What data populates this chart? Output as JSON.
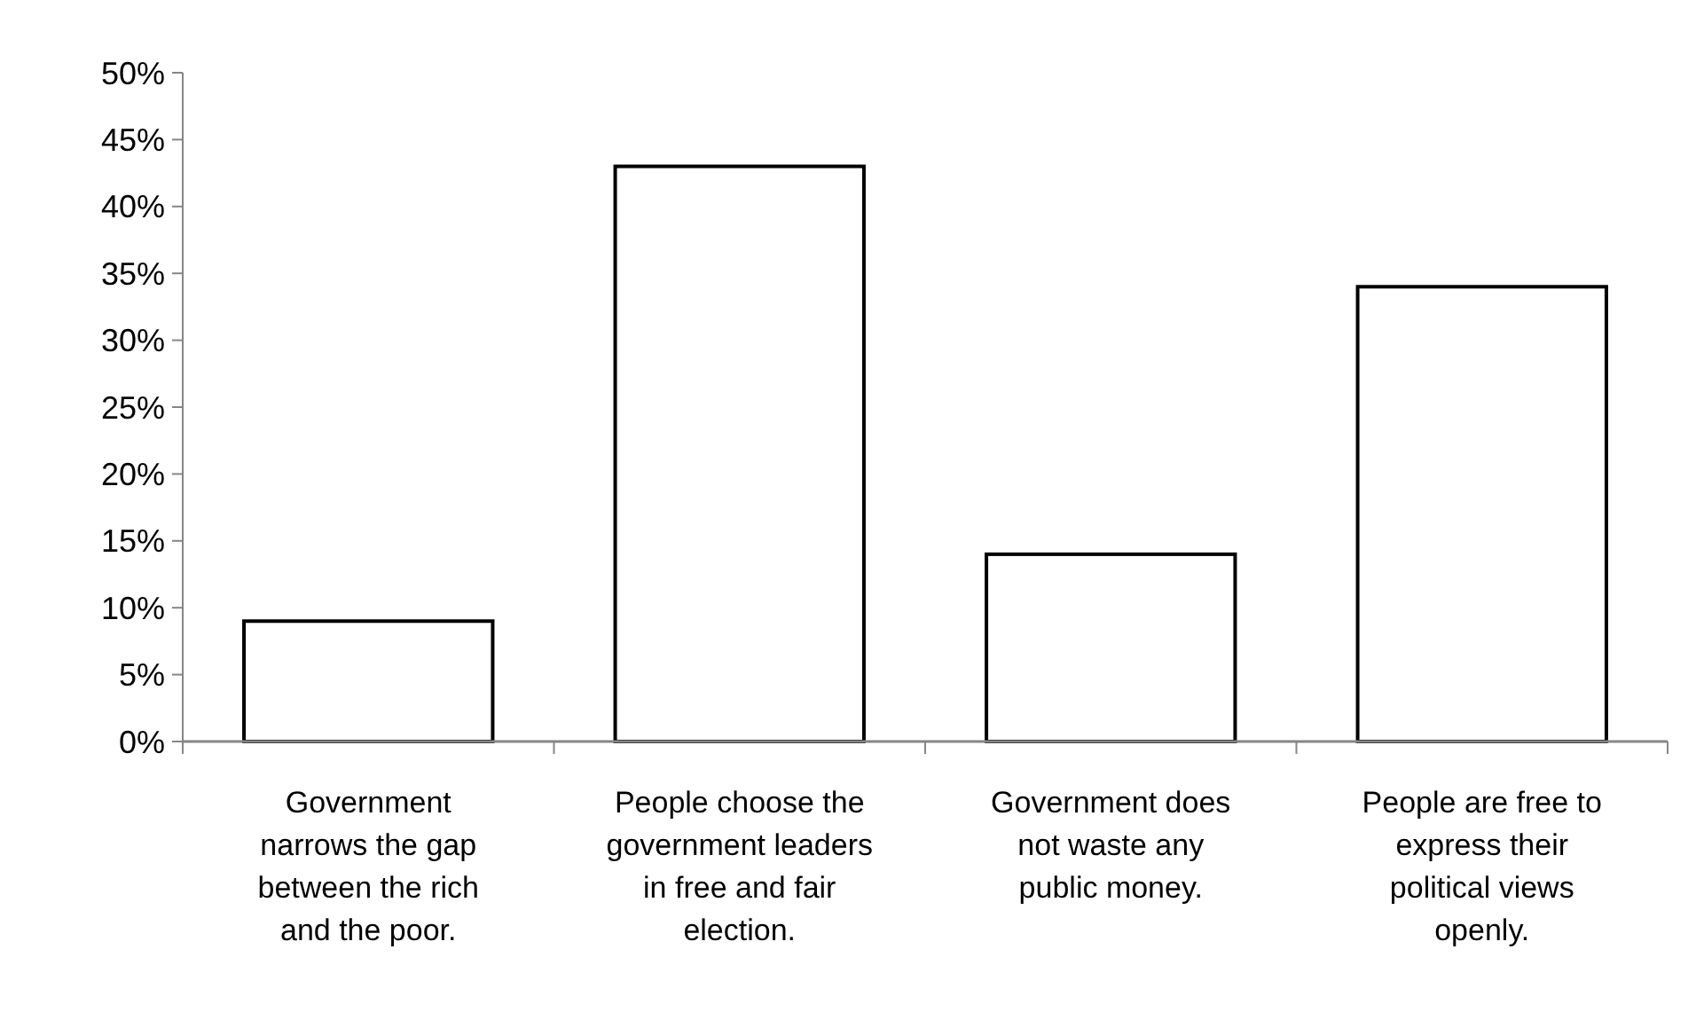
{
  "chart_data": {
    "type": "bar",
    "categories": [
      "Government narrows the gap between the rich and the poor.",
      "People choose the government leaders in free and fair election.",
      "Government does not waste any public money.",
      "People are free to express their political views openly."
    ],
    "values": [
      9,
      43,
      14,
      34
    ],
    "color": "#ffffff",
    "ylim": [
      0,
      50
    ],
    "yticks": [
      {
        "value": 0,
        "label": "0%"
      },
      {
        "value": 5,
        "label": "5%"
      },
      {
        "value": 10,
        "label": "10%"
      },
      {
        "value": 15,
        "label": "15%"
      },
      {
        "value": 20,
        "label": "20%"
      },
      {
        "value": 25,
        "label": "25%"
      },
      {
        "value": 30,
        "label": "30%"
      },
      {
        "value": 35,
        "label": "35%"
      },
      {
        "value": 40,
        "label": "40%"
      },
      {
        "value": 45,
        "label": "45%"
      },
      {
        "value": 50,
        "label": "50%"
      }
    ],
    "grid": false
  }
}
